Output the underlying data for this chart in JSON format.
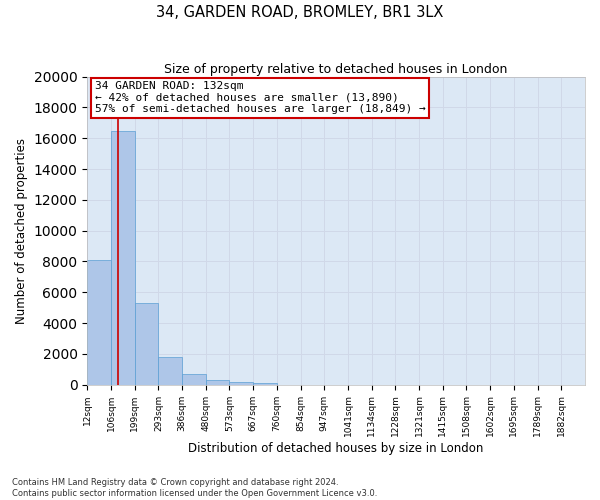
{
  "title1": "34, GARDEN ROAD, BROMLEY, BR1 3LX",
  "title2": "Size of property relative to detached houses in London",
  "xlabel": "Distribution of detached houses by size in London",
  "ylabel": "Number of detached properties",
  "bin_labels": [
    "12sqm",
    "106sqm",
    "199sqm",
    "293sqm",
    "386sqm",
    "480sqm",
    "573sqm",
    "667sqm",
    "760sqm",
    "854sqm",
    "947sqm",
    "1041sqm",
    "1134sqm",
    "1228sqm",
    "1321sqm",
    "1415sqm",
    "1508sqm",
    "1602sqm",
    "1695sqm",
    "1789sqm",
    "1882sqm"
  ],
  "bin_edges": [
    12,
    106,
    199,
    293,
    386,
    480,
    573,
    667,
    760,
    854,
    947,
    1041,
    1134,
    1228,
    1321,
    1415,
    1508,
    1602,
    1695,
    1789,
    1882
  ],
  "bar_heights": [
    8100,
    16500,
    5300,
    1800,
    700,
    280,
    180,
    100,
    0,
    0,
    0,
    0,
    0,
    0,
    0,
    0,
    0,
    0,
    0,
    0,
    0
  ],
  "bar_color": "#aec6e8",
  "bar_edge_color": "#5a9fd4",
  "grid_color": "#d0d8e8",
  "background_color": "#dce8f5",
  "property_sqm": 132,
  "red_line_color": "#cc0000",
  "annotation_text": "34 GARDEN ROAD: 132sqm\n← 42% of detached houses are smaller (13,890)\n57% of semi-detached houses are larger (18,849) →",
  "annotation_box_color": "#ffffff",
  "annotation_border_color": "#cc0000",
  "ylim": [
    0,
    20000
  ],
  "yticks": [
    0,
    2000,
    4000,
    6000,
    8000,
    10000,
    12000,
    14000,
    16000,
    18000,
    20000
  ],
  "footer_line1": "Contains HM Land Registry data © Crown copyright and database right 2024.",
  "footer_line2": "Contains public sector information licensed under the Open Government Licence v3.0."
}
